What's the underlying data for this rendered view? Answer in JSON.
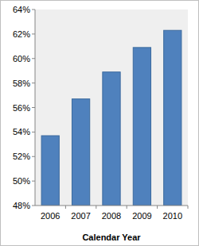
{
  "chart_data": {
    "type": "bar",
    "x_label": "Calendar Year",
    "categories": [
      "2006",
      "2007",
      "2008",
      "2009",
      "2010"
    ],
    "values": [
      53.7,
      56.7,
      58.9,
      60.9,
      62.3
    ],
    "color": "#4f81bd",
    "ylim": [
      48,
      64
    ],
    "yticks": [
      {
        "value": 48,
        "label": "48%"
      },
      {
        "value": 50,
        "label": "50%"
      },
      {
        "value": 52,
        "label": "52%"
      },
      {
        "value": 54,
        "label": "54%"
      },
      {
        "value": 56,
        "label": "56%"
      },
      {
        "value": 58,
        "label": "58%"
      },
      {
        "value": 60,
        "label": "60%"
      },
      {
        "value": 62,
        "label": "62%"
      },
      {
        "value": 64,
        "label": "64%"
      }
    ],
    "grid": false
  }
}
